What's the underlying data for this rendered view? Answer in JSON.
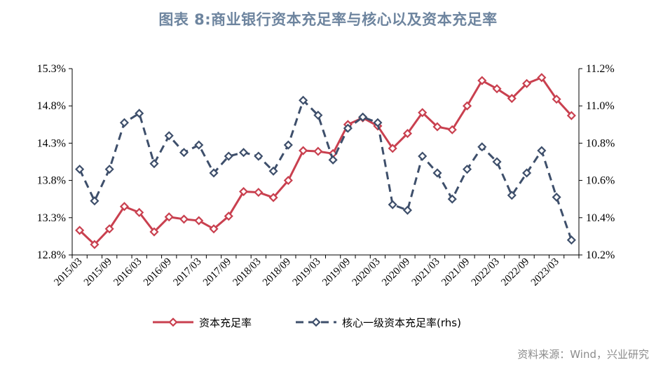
{
  "title": "图表 8:商业银行资本充足率与核心以及资本充足率",
  "source": "资料来源：Wind，兴业研究",
  "chart_data": {
    "type": "line",
    "x": [
      "2015/03",
      "2015/06",
      "2015/09",
      "2015/12",
      "2016/03",
      "2016/06",
      "2016/09",
      "2016/12",
      "2017/03",
      "2017/06",
      "2017/09",
      "2017/12",
      "2018/03",
      "2018/06",
      "2018/09",
      "2018/12",
      "2019/03",
      "2019/06",
      "2019/09",
      "2019/12",
      "2020/03",
      "2020/06",
      "2020/09",
      "2020/12",
      "2021/03",
      "2021/06",
      "2021/09",
      "2021/12",
      "2022/03",
      "2022/06",
      "2022/09",
      "2022/12",
      "2023/03",
      "2023/06"
    ],
    "x_tick_labels": [
      "2015/03",
      "2015/09",
      "2016/03",
      "2016/09",
      "2017/03",
      "2017/09",
      "2018/03",
      "2018/09",
      "2019/03",
      "2019/09",
      "2020/03",
      "2020/09",
      "2021/03",
      "2021/09",
      "2022/03",
      "2022/09",
      "2023/03"
    ],
    "y_left": {
      "min": 12.8,
      "max": 15.3,
      "step": 0.5,
      "ticks": [
        "12.8%",
        "13.3%",
        "13.8%",
        "14.3%",
        "14.8%",
        "15.3%"
      ]
    },
    "y_right": {
      "min": 10.2,
      "max": 11.2,
      "step": 0.2,
      "ticks": [
        "10.2%",
        "10.4%",
        "10.6%",
        "10.8%",
        "11.0%",
        "11.2%"
      ]
    },
    "series": [
      {
        "name": "资本充足率",
        "axis": "left",
        "color": "#c9404f",
        "style": "solid",
        "values": [
          13.13,
          12.94,
          13.15,
          13.45,
          13.37,
          13.11,
          13.31,
          13.28,
          13.26,
          13.15,
          13.32,
          13.65,
          13.64,
          13.57,
          13.8,
          14.2,
          14.19,
          14.16,
          14.55,
          14.64,
          14.53,
          14.23,
          14.43,
          14.71,
          14.52,
          14.48,
          14.8,
          15.14,
          15.03,
          14.9,
          15.1,
          15.18,
          14.89,
          14.67
        ]
      },
      {
        "name": "核心一级资本充足率(rhs)",
        "axis": "right",
        "color": "#3e4f6b",
        "style": "dashed",
        "values": [
          10.66,
          10.49,
          10.66,
          10.91,
          10.96,
          10.69,
          10.84,
          10.75,
          10.79,
          10.64,
          10.73,
          10.75,
          10.73,
          10.65,
          10.79,
          11.03,
          10.95,
          10.71,
          10.88,
          10.94,
          10.91,
          10.47,
          10.44,
          10.73,
          10.64,
          10.5,
          10.66,
          10.78,
          10.7,
          10.52,
          10.64,
          10.76,
          10.51,
          10.28
        ]
      }
    ],
    "legend": "bottom-center",
    "grid": false
  }
}
